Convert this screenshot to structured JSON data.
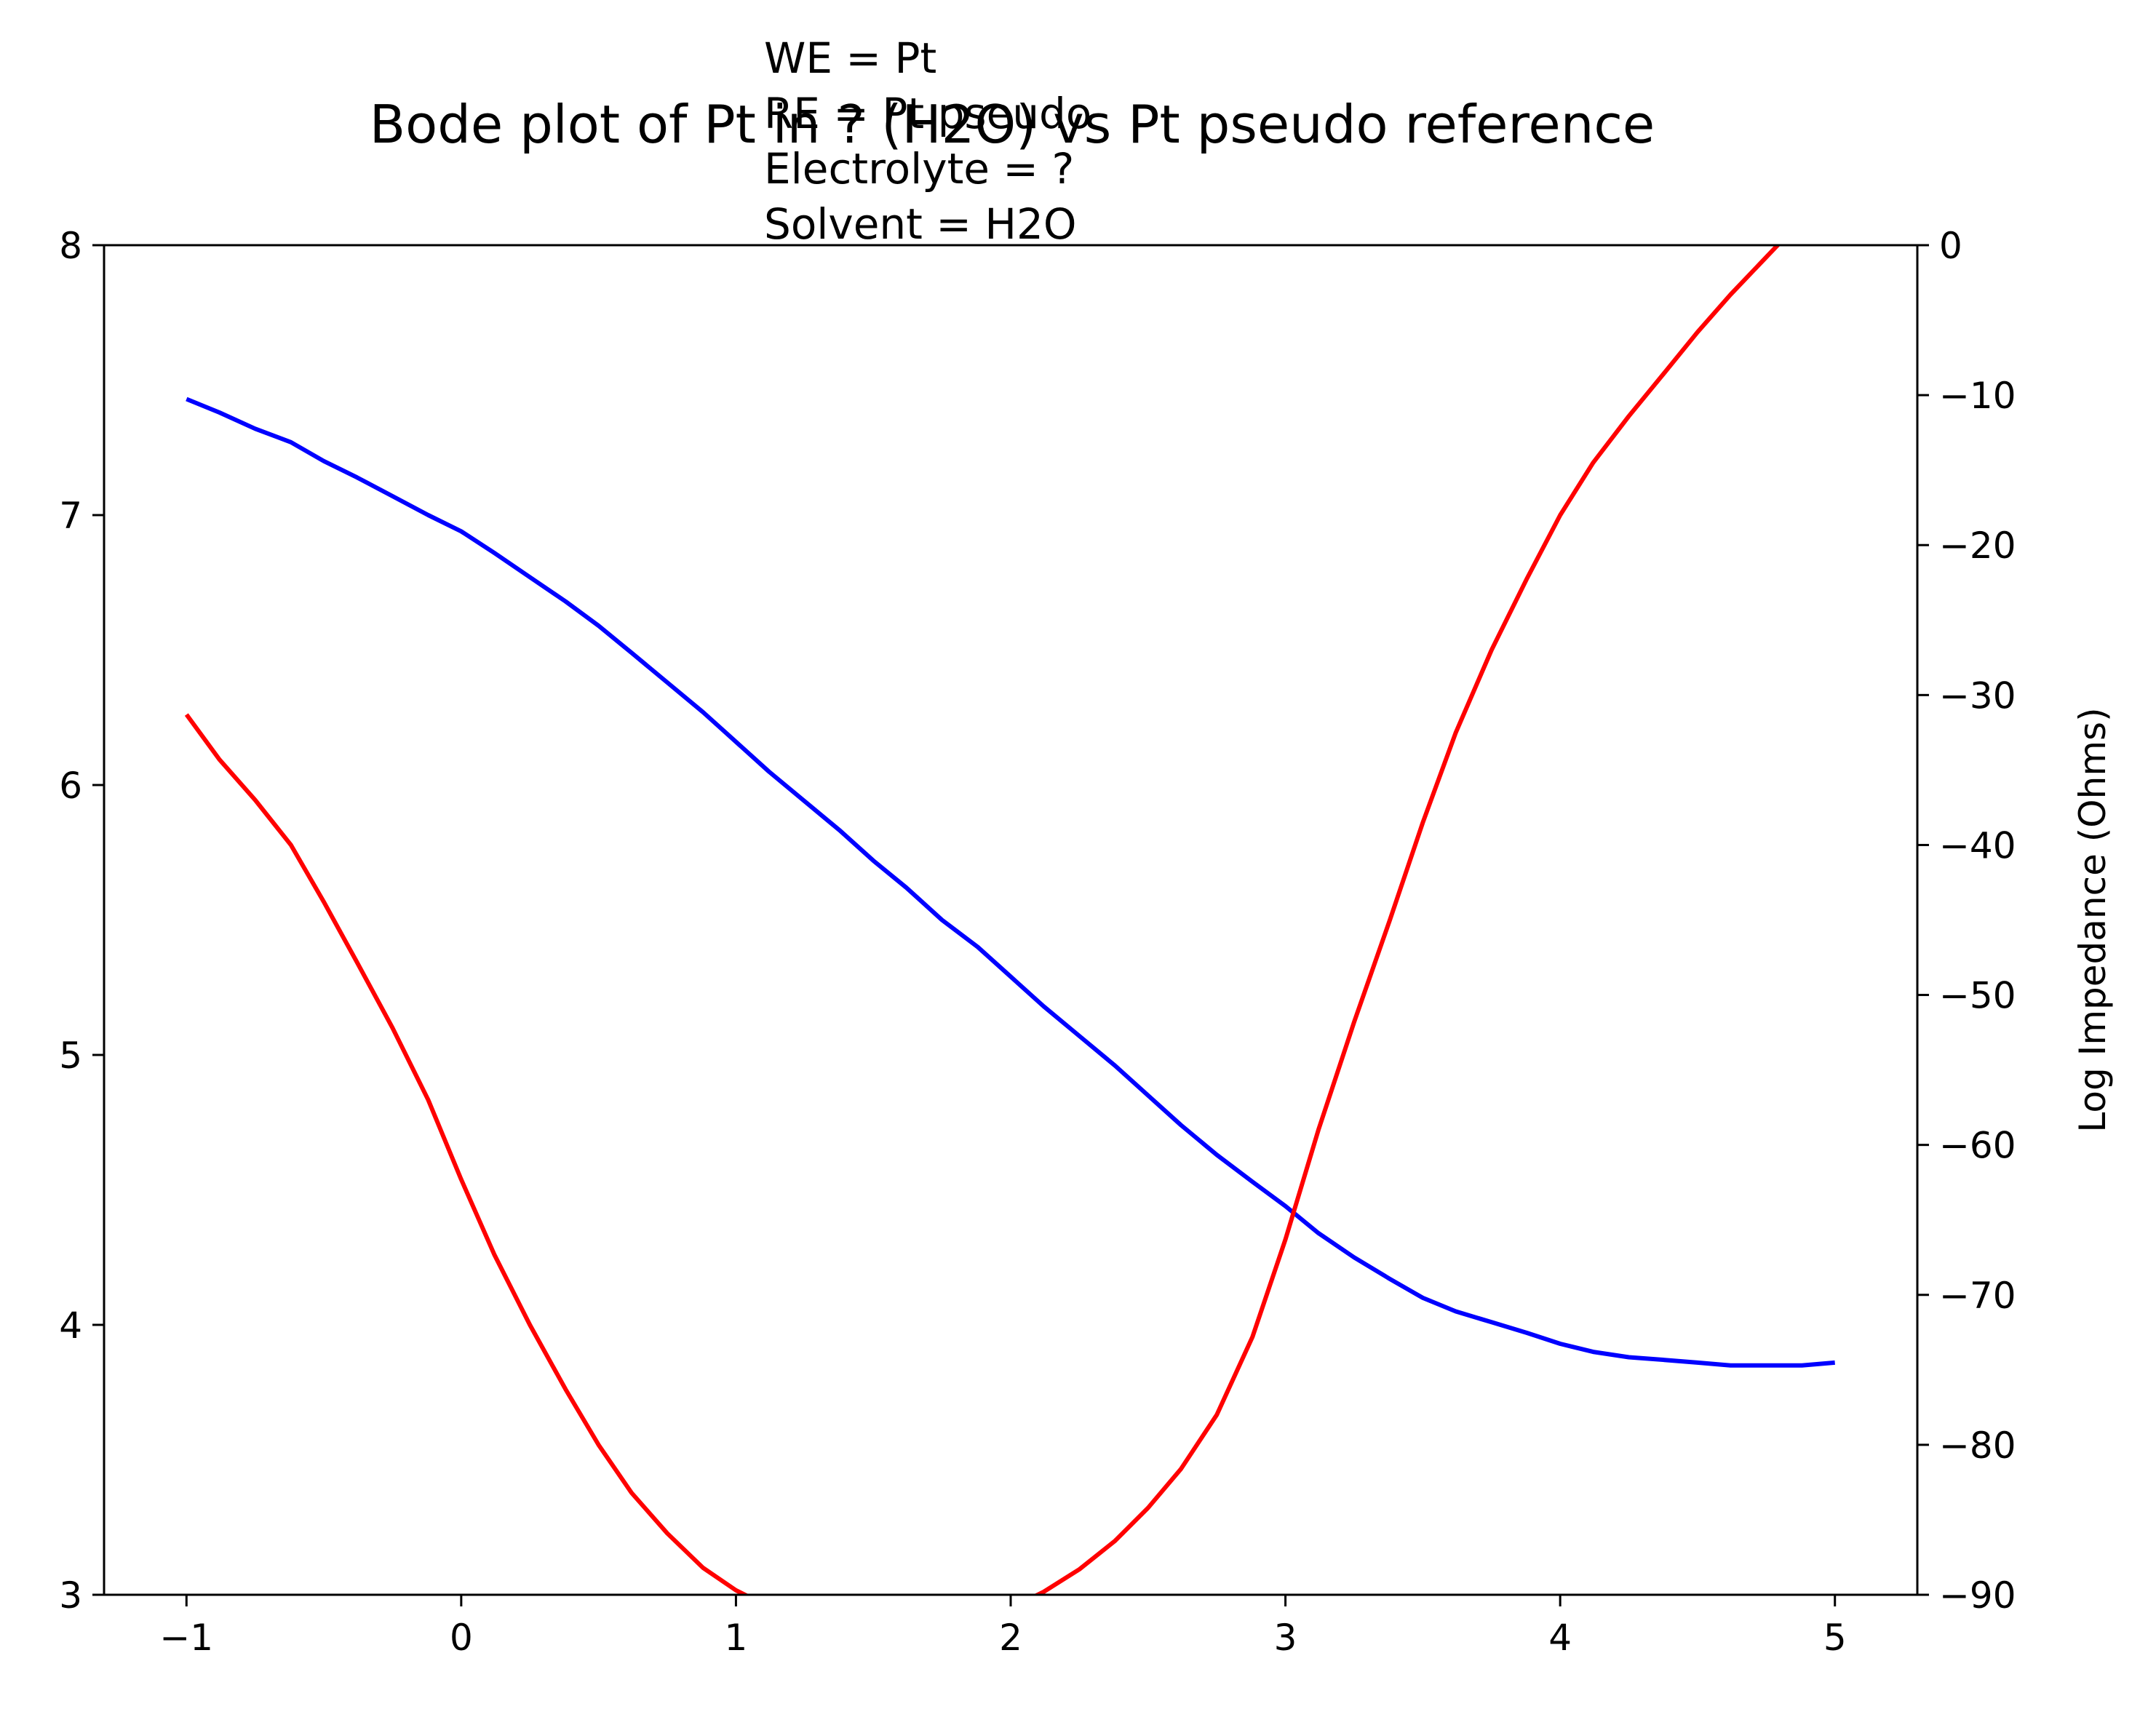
{
  "chart_data": {
    "type": "line",
    "title": "Bode plot of Pt in ? (H2O) vs Pt pseudo reference",
    "annotation": [
      "WE = Pt",
      "RE = Pt pseudo",
      "Electrolyte = ?",
      "Solvent = H2O"
    ],
    "xlabel": "",
    "ylabel_left": "",
    "ylabel_right": "Log Impedance (Ohms)",
    "xlim": [
      -1.3,
      5.3
    ],
    "ylim_left": [
      3,
      8
    ],
    "ylim_right": [
      -90,
      0
    ],
    "x_ticks": [
      -1,
      0,
      1,
      2,
      3,
      4,
      5
    ],
    "x_tick_labels": [
      "−1",
      "0",
      "1",
      "2",
      "3",
      "4",
      "5"
    ],
    "y_left_ticks": [
      3,
      4,
      5,
      6,
      7,
      8
    ],
    "y_left_tick_labels": [
      "3",
      "4",
      "5",
      "6",
      "7",
      "8"
    ],
    "y_right_ticks": [
      -90,
      -80,
      -70,
      -60,
      -50,
      -40,
      -30,
      -20,
      -10,
      0
    ],
    "y_right_tick_labels": [
      "−90",
      "−80",
      "−70",
      "−60",
      "−50",
      "−40",
      "−30",
      "−20",
      "−10",
      "0"
    ],
    "grid": false,
    "series": [
      {
        "color": "#0000ff",
        "axis": "left",
        "x": [
          -1.0,
          -0.88,
          -0.75,
          -0.62,
          -0.5,
          -0.38,
          -0.25,
          -0.12,
          0.0,
          0.12,
          0.25,
          0.38,
          0.5,
          0.62,
          0.75,
          0.88,
          1.0,
          1.12,
          1.25,
          1.38,
          1.5,
          1.62,
          1.75,
          1.88,
          2.0,
          2.12,
          2.25,
          2.38,
          2.5,
          2.62,
          2.75,
          2.88,
          3.0,
          3.12,
          3.25,
          3.38,
          3.5,
          3.62,
          3.75,
          3.88,
          4.0,
          4.12,
          4.25,
          4.38,
          4.5,
          4.62,
          4.75,
          4.88,
          5.0
        ],
        "y": [
          7.43,
          7.38,
          7.32,
          7.27,
          7.2,
          7.14,
          7.07,
          7.0,
          6.94,
          6.86,
          6.77,
          6.68,
          6.59,
          6.49,
          6.38,
          6.27,
          6.16,
          6.05,
          5.94,
          5.83,
          5.72,
          5.62,
          5.5,
          5.4,
          5.29,
          5.18,
          5.07,
          4.96,
          4.85,
          4.74,
          4.63,
          4.53,
          4.44,
          4.34,
          4.25,
          4.17,
          4.1,
          4.05,
          4.01,
          3.97,
          3.93,
          3.9,
          3.88,
          3.87,
          3.86,
          3.85,
          3.85,
          3.85,
          3.86
        ]
      },
      {
        "color": "#ff0000",
        "axis": "right",
        "x": [
          -1.0,
          -0.88,
          -0.75,
          -0.62,
          -0.5,
          -0.38,
          -0.25,
          -0.12,
          0.0,
          0.12,
          0.25,
          0.38,
          0.5,
          0.62,
          0.75,
          0.88,
          1.0,
          1.12,
          1.25,
          1.38,
          1.5,
          1.62,
          1.75,
          1.88,
          2.0,
          2.12,
          2.25,
          2.38,
          2.5,
          2.62,
          2.75,
          2.88,
          3.0,
          3.12,
          3.25,
          3.38,
          3.5,
          3.62,
          3.75,
          3.88,
          4.0,
          4.12,
          4.25,
          4.38,
          4.5,
          4.62,
          4.75,
          4.88
        ],
        "y": [
          -31.3,
          -34.3,
          -37.0,
          -40.0,
          -43.8,
          -47.8,
          -52.2,
          -57.0,
          -62.3,
          -67.3,
          -72.0,
          -76.3,
          -80.0,
          -83.2,
          -85.9,
          -88.2,
          -89.7,
          -90.8,
          -91.9,
          -92.4,
          -92.6,
          -92.5,
          -92.4,
          -91.8,
          -90.9,
          -89.8,
          -88.3,
          -86.4,
          -84.2,
          -81.6,
          -78.0,
          -72.8,
          -66.3,
          -59.0,
          -51.8,
          -45.0,
          -38.5,
          -32.5,
          -27.0,
          -22.2,
          -18.0,
          -14.5,
          -11.4,
          -8.5,
          -5.8,
          -3.3,
          -0.8,
          1.7
        ]
      }
    ]
  }
}
